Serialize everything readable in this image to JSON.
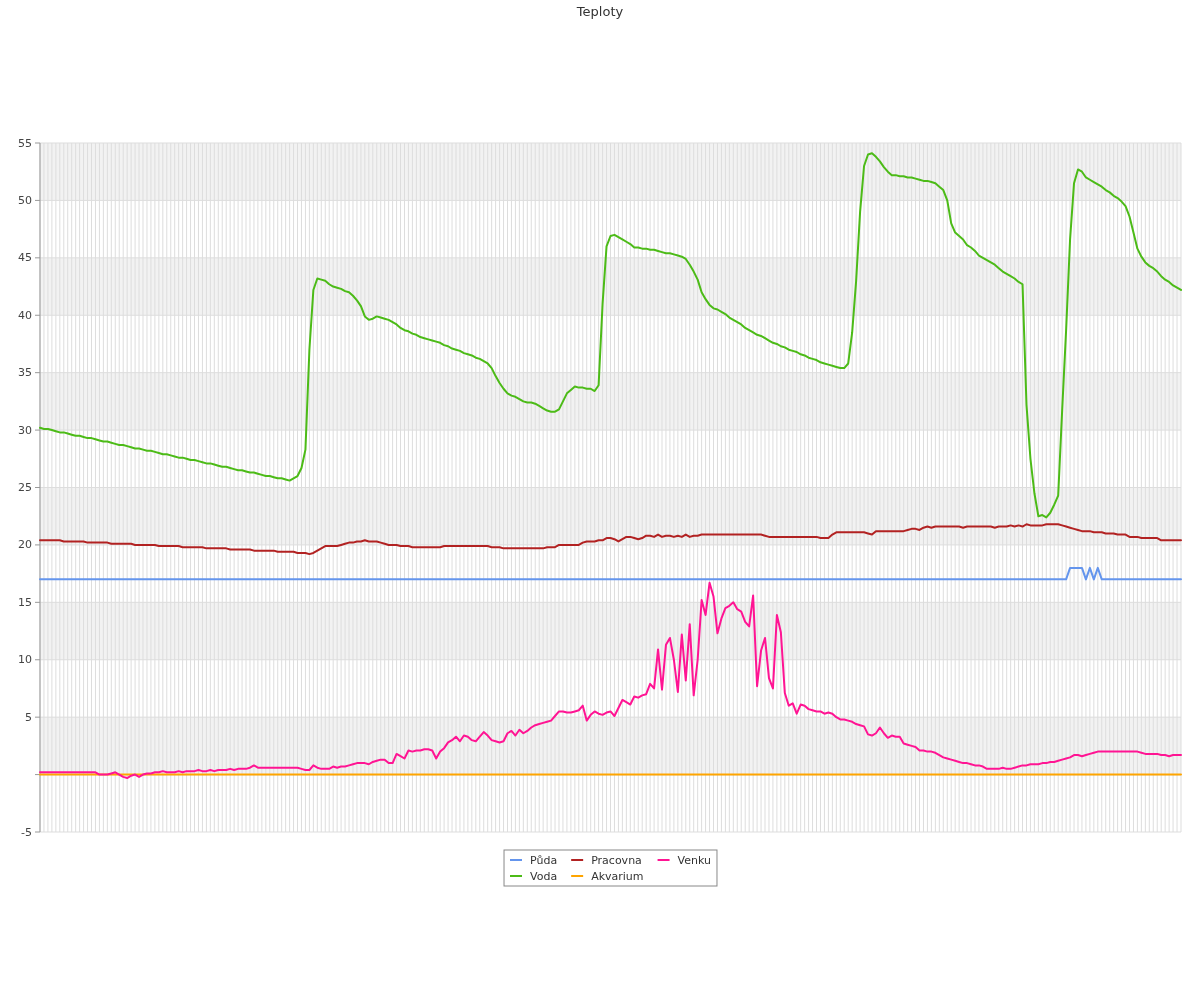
{
  "chart_data": {
    "type": "line",
    "title": "Teploty",
    "categories": [
      null,
      null,
      null,
      null,
      null,
      null,
      null,
      null,
      null,
      null,
      null,
      null,
      null,
      null,
      null,
      null,
      null,
      null,
      null,
      null,
      null,
      null,
      null,
      null,
      null,
      null,
      null,
      null,
      null,
      null,
      null,
      null,
      null,
      null,
      null,
      null,
      null,
      null,
      null,
      null,
      null,
      null,
      null,
      null,
      null,
      null,
      null,
      null,
      null,
      null,
      null,
      null,
      null,
      null,
      null,
      null,
      null,
      null,
      null,
      null,
      null,
      null,
      null,
      null,
      null,
      null,
      null,
      null,
      null,
      null,
      null,
      null,
      null,
      null,
      null,
      null,
      null,
      null,
      null,
      null,
      null,
      null,
      null,
      null,
      null,
      null,
      null,
      null,
      null,
      null,
      null,
      null,
      null,
      null,
      null,
      null,
      null,
      null,
      null,
      null,
      null,
      null,
      null,
      null,
      null,
      null,
      null,
      null,
      null,
      null,
      null,
      null,
      null,
      null,
      null,
      null,
      null,
      null,
      null,
      null,
      null,
      null,
      null,
      null,
      null,
      null,
      null,
      null,
      null,
      null,
      null,
      null,
      null,
      null,
      null,
      null,
      null,
      null,
      null,
      null,
      null,
      null,
      null,
      null,
      null,
      null,
      null,
      null,
      null,
      null,
      null,
      null,
      null,
      null,
      null,
      null,
      null,
      null,
      null,
      null,
      null,
      null,
      null,
      null,
      null,
      null,
      null,
      null,
      null,
      null,
      null,
      null,
      null,
      null,
      null,
      null,
      null,
      null,
      null,
      null,
      null,
      null,
      null,
      null,
      null,
      null,
      null,
      null,
      null,
      null,
      null,
      null,
      null,
      null,
      null,
      null,
      null,
      null,
      null,
      null,
      null,
      null,
      null,
      null,
      null,
      null,
      null,
      null,
      null,
      null,
      null,
      null,
      null,
      null,
      null,
      null,
      null,
      null,
      null,
      null,
      null,
      null,
      null,
      null,
      null,
      null,
      null,
      null,
      null,
      null,
      null,
      null,
      null,
      null,
      null,
      null,
      null,
      null,
      null,
      null,
      null,
      null,
      null,
      null,
      null,
      null,
      null,
      null,
      null,
      null,
      null,
      null,
      null,
      null,
      null,
      null,
      null,
      null,
      null,
      null,
      null,
      null,
      null,
      null,
      null,
      null,
      null,
      null,
      null,
      null,
      null,
      null,
      null,
      null,
      null,
      null,
      null,
      null,
      null,
      null,
      null,
      null,
      null,
      null,
      null,
      null,
      null,
      null,
      null
    ],
    "series": [
      {
        "name": "Půda",
        "color": "#6495ed",
        "values": [
          17,
          17,
          17,
          17,
          17,
          17,
          17,
          17,
          17,
          17,
          17,
          17,
          17,
          17,
          17,
          17,
          17,
          17,
          17,
          17,
          17,
          17,
          17,
          17,
          17,
          17,
          17,
          17,
          17,
          17,
          17,
          17,
          17,
          17,
          17,
          17,
          17,
          17,
          17,
          17,
          17,
          17,
          17,
          17,
          17,
          17,
          17,
          17,
          17,
          17,
          17,
          17,
          17,
          17,
          17,
          17,
          17,
          17,
          17,
          17,
          17,
          17,
          17,
          17,
          17,
          17,
          17,
          17,
          17,
          17,
          17,
          17,
          17,
          17,
          17,
          17,
          17,
          17,
          17,
          17,
          17,
          17,
          17,
          17,
          17,
          17,
          17,
          17,
          17,
          17,
          17,
          17,
          17,
          17,
          17,
          17,
          17,
          17,
          17,
          17,
          17,
          17,
          17,
          17,
          17,
          17,
          17,
          17,
          17,
          17,
          17,
          17,
          17,
          17,
          17,
          17,
          17,
          17,
          17,
          17,
          17,
          17,
          17,
          17,
          17,
          17,
          17,
          17,
          17,
          17,
          17,
          17,
          17,
          17,
          17,
          17,
          17,
          17,
          17,
          17,
          17,
          17,
          17,
          17,
          17,
          17,
          17,
          17,
          17,
          17,
          17,
          17,
          17,
          17,
          17,
          17,
          17,
          17,
          17,
          17,
          17,
          17,
          17,
          17,
          17,
          17,
          17,
          17,
          17,
          17,
          17,
          17,
          17,
          17,
          17,
          17,
          17,
          17,
          17,
          17,
          17,
          17,
          17,
          17,
          17,
          17,
          17,
          17,
          17,
          17,
          17,
          17,
          17,
          17,
          17,
          17,
          17,
          17,
          17,
          17,
          17,
          17,
          17,
          17,
          17,
          17,
          17,
          17,
          17,
          17,
          17,
          17,
          17,
          17,
          17,
          17,
          17,
          17,
          17,
          17,
          17,
          17,
          17,
          17,
          17,
          17,
          17,
          17,
          17,
          17,
          17,
          17,
          17,
          17,
          17,
          17,
          17,
          17,
          17,
          17,
          17,
          17,
          17,
          17,
          17,
          17,
          17,
          17,
          17,
          17,
          17,
          17,
          17,
          17,
          17,
          17,
          17,
          17,
          17,
          17,
          18,
          18,
          18,
          18,
          17,
          18,
          17,
          18,
          17,
          17,
          17,
          17,
          17,
          17,
          17,
          17,
          17,
          17,
          17,
          17,
          17,
          17,
          17,
          17,
          17,
          17,
          17,
          17,
          17
        ]
      },
      {
        "name": "Voda",
        "color": "#4cbb17",
        "values": [
          30.2,
          30.1,
          30.1,
          30.0,
          29.9,
          29.8,
          29.8,
          29.7,
          29.6,
          29.5,
          29.5,
          29.4,
          29.3,
          29.3,
          29.2,
          29.1,
          29.0,
          29.0,
          28.9,
          28.8,
          28.7,
          28.7,
          28.6,
          28.5,
          28.4,
          28.4,
          28.3,
          28.2,
          28.2,
          28.1,
          28.0,
          27.9,
          27.9,
          27.8,
          27.7,
          27.6,
          27.6,
          27.5,
          27.4,
          27.4,
          27.3,
          27.2,
          27.1,
          27.1,
          27.0,
          26.9,
          26.8,
          26.8,
          26.7,
          26.6,
          26.5,
          26.5,
          26.4,
          26.3,
          26.3,
          26.2,
          26.1,
          26.0,
          26.0,
          25.9,
          25.8,
          25.8,
          25.7,
          25.6,
          25.8,
          26.0,
          26.7,
          28.3,
          37.0,
          42.2,
          43.2,
          43.1,
          43.0,
          42.7,
          42.5,
          42.4,
          42.3,
          42.1,
          42.0,
          41.7,
          41.3,
          40.8,
          39.9,
          39.6,
          39.7,
          39.9,
          39.8,
          39.7,
          39.6,
          39.4,
          39.2,
          38.9,
          38.7,
          38.6,
          38.4,
          38.3,
          38.1,
          38.0,
          37.9,
          37.8,
          37.7,
          37.6,
          37.4,
          37.3,
          37.1,
          37.0,
          36.9,
          36.7,
          36.6,
          36.5,
          36.3,
          36.2,
          36.0,
          35.8,
          35.4,
          34.7,
          34.1,
          33.6,
          33.2,
          33.0,
          32.9,
          32.7,
          32.5,
          32.4,
          32.4,
          32.3,
          32.1,
          31.9,
          31.7,
          31.6,
          31.6,
          31.8,
          32.5,
          33.2,
          33.5,
          33.8,
          33.7,
          33.7,
          33.6,
          33.6,
          33.4,
          33.9,
          41.0,
          46.0,
          46.9,
          47.0,
          46.8,
          46.6,
          46.4,
          46.2,
          45.9,
          45.9,
          45.8,
          45.8,
          45.7,
          45.7,
          45.6,
          45.5,
          45.4,
          45.4,
          45.3,
          45.2,
          45.1,
          44.9,
          44.4,
          43.8,
          43.1,
          42.0,
          41.4,
          40.9,
          40.6,
          40.5,
          40.3,
          40.1,
          39.8,
          39.6,
          39.4,
          39.2,
          38.9,
          38.7,
          38.5,
          38.3,
          38.2,
          38.0,
          37.8,
          37.6,
          37.5,
          37.3,
          37.2,
          37.0,
          36.9,
          36.8,
          36.6,
          36.5,
          36.3,
          36.2,
          36.1,
          35.9,
          35.8,
          35.7,
          35.6,
          35.5,
          35.4,
          35.4,
          35.8,
          38.5,
          43.0,
          49.0,
          53.0,
          54.0,
          54.1,
          53.8,
          53.4,
          52.9,
          52.5,
          52.2,
          52.2,
          52.1,
          52.1,
          52.0,
          52.0,
          51.9,
          51.8,
          51.7,
          51.7,
          51.6,
          51.5,
          51.2,
          50.9,
          50.0,
          48.0,
          47.2,
          46.9,
          46.6,
          46.1,
          45.9,
          45.6,
          45.2,
          45.0,
          44.8,
          44.6,
          44.4,
          44.1,
          43.8,
          43.6,
          43.4,
          43.2,
          42.9,
          42.7,
          32.2,
          27.5,
          24.5,
          22.5,
          22.6,
          22.4,
          22.8,
          23.5,
          24.3,
          31.7,
          38.7,
          46.6,
          51.5,
          52.7,
          52.5,
          52.0,
          51.8,
          51.6,
          51.4,
          51.2,
          50.9,
          50.7,
          50.4,
          50.2,
          49.9,
          49.5,
          48.6,
          47.2,
          45.8,
          45.1,
          44.6,
          44.3,
          44.1,
          43.8,
          43.4,
          43.1,
          42.9,
          42.6,
          42.4,
          42.2
        ]
      },
      {
        "name": "Pracovna",
        "color": "#b22222",
        "values": [
          20.4,
          20.4,
          20.4,
          20.4,
          20.4,
          20.4,
          20.3,
          20.3,
          20.3,
          20.3,
          20.3,
          20.3,
          20.2,
          20.2,
          20.2,
          20.2,
          20.2,
          20.2,
          20.1,
          20.1,
          20.1,
          20.1,
          20.1,
          20.1,
          20.0,
          20.0,
          20.0,
          20.0,
          20.0,
          20.0,
          19.9,
          19.9,
          19.9,
          19.9,
          19.9,
          19.9,
          19.8,
          19.8,
          19.8,
          19.8,
          19.8,
          19.8,
          19.7,
          19.7,
          19.7,
          19.7,
          19.7,
          19.7,
          19.6,
          19.6,
          19.6,
          19.6,
          19.6,
          19.6,
          19.5,
          19.5,
          19.5,
          19.5,
          19.5,
          19.5,
          19.4,
          19.4,
          19.4,
          19.4,
          19.4,
          19.3,
          19.3,
          19.3,
          19.2,
          19.3,
          19.5,
          19.7,
          19.9,
          19.9,
          19.9,
          19.9,
          20.0,
          20.1,
          20.2,
          20.2,
          20.3,
          20.3,
          20.4,
          20.3,
          20.3,
          20.3,
          20.2,
          20.1,
          20.0,
          20.0,
          20.0,
          19.9,
          19.9,
          19.9,
          19.8,
          19.8,
          19.8,
          19.8,
          19.8,
          19.8,
          19.8,
          19.8,
          19.9,
          19.9,
          19.9,
          19.9,
          19.9,
          19.9,
          19.9,
          19.9,
          19.9,
          19.9,
          19.9,
          19.9,
          19.8,
          19.8,
          19.8,
          19.7,
          19.7,
          19.7,
          19.7,
          19.7,
          19.7,
          19.7,
          19.7,
          19.7,
          19.7,
          19.7,
          19.8,
          19.8,
          19.8,
          20.0,
          20.0,
          20.0,
          20.0,
          20.0,
          20.0,
          20.2,
          20.3,
          20.3,
          20.3,
          20.4,
          20.4,
          20.6,
          20.6,
          20.5,
          20.3,
          20.5,
          20.7,
          20.7,
          20.6,
          20.5,
          20.6,
          20.8,
          20.8,
          20.7,
          20.9,
          20.7,
          20.8,
          20.8,
          20.7,
          20.8,
          20.7,
          20.9,
          20.7,
          20.8,
          20.8,
          20.9,
          20.9,
          20.9,
          20.9,
          20.9,
          20.9,
          20.9,
          20.9,
          20.9,
          20.9,
          20.9,
          20.9,
          20.9,
          20.9,
          20.9,
          20.9,
          20.8,
          20.7,
          20.7,
          20.7,
          20.7,
          20.7,
          20.7,
          20.7,
          20.7,
          20.7,
          20.7,
          20.7,
          20.7,
          20.7,
          20.6,
          20.6,
          20.6,
          20.9,
          21.1,
          21.1,
          21.1,
          21.1,
          21.1,
          21.1,
          21.1,
          21.1,
          21.0,
          20.9,
          21.2,
          21.2,
          21.2,
          21.2,
          21.2,
          21.2,
          21.2,
          21.2,
          21.3,
          21.4,
          21.4,
          21.3,
          21.5,
          21.6,
          21.5,
          21.6,
          21.6,
          21.6,
          21.6,
          21.6,
          21.6,
          21.6,
          21.5,
          21.6,
          21.6,
          21.6,
          21.6,
          21.6,
          21.6,
          21.6,
          21.5,
          21.6,
          21.6,
          21.6,
          21.7,
          21.6,
          21.7,
          21.6,
          21.8,
          21.7,
          21.7,
          21.7,
          21.7,
          21.8,
          21.8,
          21.8,
          21.8,
          21.7,
          21.6,
          21.5,
          21.4,
          21.3,
          21.2,
          21.2,
          21.2,
          21.1,
          21.1,
          21.1,
          21.0,
          21.0,
          21.0,
          20.9,
          20.9,
          20.9,
          20.7,
          20.7,
          20.7,
          20.6,
          20.6,
          20.6,
          20.6,
          20.6,
          20.4,
          20.4,
          20.4,
          20.4,
          20.4,
          20.4
        ]
      },
      {
        "name": "Akvarium",
        "color": "#ffa500",
        "values": [
          0,
          0,
          0,
          0,
          0,
          0,
          0,
          0,
          0,
          0,
          0,
          0,
          0,
          0,
          0,
          0,
          0,
          0,
          0,
          0,
          0,
          0,
          0,
          0,
          0,
          0,
          0,
          0,
          0,
          0,
          0,
          0,
          0,
          0,
          0,
          0,
          0,
          0,
          0,
          0,
          0,
          0,
          0,
          0,
          0,
          0,
          0,
          0,
          0,
          0,
          0,
          0,
          0,
          0,
          0,
          0,
          0,
          0,
          0,
          0,
          0,
          0,
          0,
          0,
          0,
          0,
          0,
          0,
          0,
          0,
          0,
          0,
          0,
          0,
          0,
          0,
          0,
          0,
          0,
          0,
          0,
          0,
          0,
          0,
          0,
          0,
          0,
          0,
          0,
          0,
          0,
          0,
          0,
          0,
          0,
          0,
          0,
          0,
          0,
          0,
          0,
          0,
          0,
          0,
          0,
          0,
          0,
          0,
          0,
          0,
          0,
          0,
          0,
          0,
          0,
          0,
          0,
          0,
          0,
          0,
          0,
          0,
          0,
          0,
          0,
          0,
          0,
          0,
          0,
          0,
          0,
          0,
          0,
          0,
          0,
          0,
          0,
          0,
          0,
          0,
          0,
          0,
          0,
          0,
          0,
          0,
          0,
          0,
          0,
          0,
          0,
          0,
          0,
          0,
          0,
          0,
          0,
          0,
          0,
          0,
          0,
          0,
          0,
          0,
          0,
          0,
          0,
          0,
          0,
          0,
          0,
          0,
          0,
          0,
          0,
          0,
          0,
          0,
          0,
          0,
          0,
          0,
          0,
          0,
          0,
          0,
          0,
          0,
          0,
          0,
          0,
          0,
          0,
          0,
          0,
          0,
          0,
          0,
          0,
          0,
          0,
          0,
          0,
          0,
          0,
          0,
          0,
          0,
          0,
          0,
          0,
          0,
          0,
          0,
          0,
          0,
          0,
          0,
          0,
          0,
          0,
          0,
          0,
          0,
          0,
          0,
          0,
          0,
          0,
          0,
          0,
          0,
          0,
          0,
          0,
          0,
          0,
          0,
          0,
          0,
          0,
          0,
          0,
          0,
          0,
          0,
          0,
          0,
          0,
          0,
          0,
          0,
          0,
          0,
          0,
          0,
          0,
          0,
          0,
          0,
          0,
          0,
          0,
          0,
          0,
          0,
          0,
          0,
          0,
          0,
          0,
          0,
          0,
          0,
          0,
          0,
          0,
          0,
          0,
          0,
          0,
          0,
          0,
          0,
          0,
          0,
          0,
          0,
          0
        ]
      },
      {
        "name": "Venku",
        "color": "#ff1493",
        "values": [
          0.2,
          0.2,
          0.2,
          0.2,
          0.2,
          0.2,
          0.2,
          0.2,
          0.2,
          0.2,
          0.2,
          0.2,
          0.2,
          0.2,
          0.2,
          0.0,
          0.0,
          0.0,
          0.1,
          0.2,
          0.0,
          -0.2,
          -0.3,
          -0.1,
          0.0,
          -0.2,
          0.0,
          0.1,
          0.1,
          0.2,
          0.2,
          0.3,
          0.2,
          0.2,
          0.2,
          0.3,
          0.2,
          0.3,
          0.3,
          0.3,
          0.4,
          0.3,
          0.3,
          0.4,
          0.3,
          0.4,
          0.4,
          0.4,
          0.5,
          0.4,
          0.5,
          0.5,
          0.5,
          0.6,
          0.8,
          0.6,
          0.6,
          0.6,
          0.6,
          0.6,
          0.6,
          0.6,
          0.6,
          0.6,
          0.6,
          0.6,
          0.5,
          0.4,
          0.4,
          0.8,
          0.6,
          0.5,
          0.5,
          0.5,
          0.7,
          0.6,
          0.7,
          0.7,
          0.8,
          0.9,
          1.0,
          1.0,
          1.0,
          0.9,
          1.1,
          1.2,
          1.3,
          1.3,
          1.0,
          1.0,
          1.8,
          1.6,
          1.4,
          2.1,
          2.0,
          2.1,
          2.1,
          2.2,
          2.2,
          2.1,
          1.4,
          2.0,
          2.3,
          2.8,
          3.0,
          3.3,
          2.9,
          3.4,
          3.3,
          3.0,
          2.9,
          3.3,
          3.7,
          3.4,
          3.0,
          2.9,
          2.8,
          2.9,
          3.6,
          3.8,
          3.4,
          3.9,
          3.6,
          3.8,
          4.1,
          4.3,
          4.4,
          4.5,
          4.6,
          4.7,
          5.1,
          5.5,
          5.5,
          5.4,
          5.4,
          5.5,
          5.6,
          6.0,
          4.7,
          5.2,
          5.5,
          5.3,
          5.2,
          5.4,
          5.5,
          5.1,
          5.8,
          6.5,
          6.3,
          6.1,
          6.8,
          6.7,
          6.9,
          7.0,
          7.9,
          7.5,
          10.9,
          7.4,
          11.3,
          11.9,
          10.0,
          7.2,
          12.2,
          8.2,
          13.1,
          6.9,
          10.0,
          15.2,
          13.9,
          16.7,
          15.5,
          12.3,
          13.6,
          14.5,
          14.7,
          15.0,
          14.4,
          14.2,
          13.3,
          12.9,
          15.6,
          7.7,
          10.8,
          11.9,
          8.4,
          7.5,
          13.9,
          12.4,
          7.1,
          6.0,
          6.2,
          5.3,
          6.1,
          6.0,
          5.7,
          5.6,
          5.5,
          5.5,
          5.3,
          5.4,
          5.3,
          5.0,
          4.8,
          4.8,
          4.7,
          4.6,
          4.4,
          4.3,
          4.2,
          3.5,
          3.4,
          3.6,
          4.1,
          3.6,
          3.2,
          3.4,
          3.3,
          3.3,
          2.7,
          2.6,
          2.5,
          2.4,
          2.1,
          2.1,
          2.0,
          2.0,
          1.9,
          1.7,
          1.5,
          1.4,
          1.3,
          1.2,
          1.1,
          1.0,
          1.0,
          0.9,
          0.8,
          0.8,
          0.7,
          0.5,
          0.5,
          0.5,
          0.5,
          0.6,
          0.5,
          0.5,
          0.6,
          0.7,
          0.8,
          0.8,
          0.9,
          0.9,
          0.9,
          1.0,
          1.0,
          1.1,
          1.1,
          1.2,
          1.3,
          1.4,
          1.5,
          1.7,
          1.7,
          1.6,
          1.7,
          1.8,
          1.9,
          2.0,
          2.0,
          2.0,
          2.0,
          2.0,
          2.0,
          2.0,
          2.0,
          2.0,
          2.0,
          2.0,
          1.9,
          1.8,
          1.8,
          1.8,
          1.8,
          1.7,
          1.7,
          1.6,
          1.7,
          1.7,
          1.7
        ]
      }
    ],
    "ylim": [
      -5,
      55
    ],
    "yticks": [
      -5,
      {
        "value": 0,
        "label": null
      },
      5,
      10,
      15,
      20,
      25,
      30,
      35,
      40,
      45,
      50,
      55
    ],
    "bands": [
      {
        "axis": "y",
        "from": 0,
        "to": 5,
        "color": "#f2f2f2"
      },
      {
        "axis": "y",
        "from": 10,
        "to": 15,
        "color": "#f2f2f2"
      },
      {
        "axis": "y",
        "from": 20,
        "to": 25,
        "color": "#f2f2f2"
      },
      {
        "axis": "y",
        "from": 30,
        "to": 35,
        "color": "#f2f2f2"
      },
      {
        "axis": "y",
        "from": 40,
        "to": 45,
        "color": "#f2f2f2"
      },
      {
        "axis": "y",
        "from": 50,
        "to": 55,
        "color": "#f2f2f2"
      }
    ],
    "grid": true,
    "legend": "bottom"
  }
}
